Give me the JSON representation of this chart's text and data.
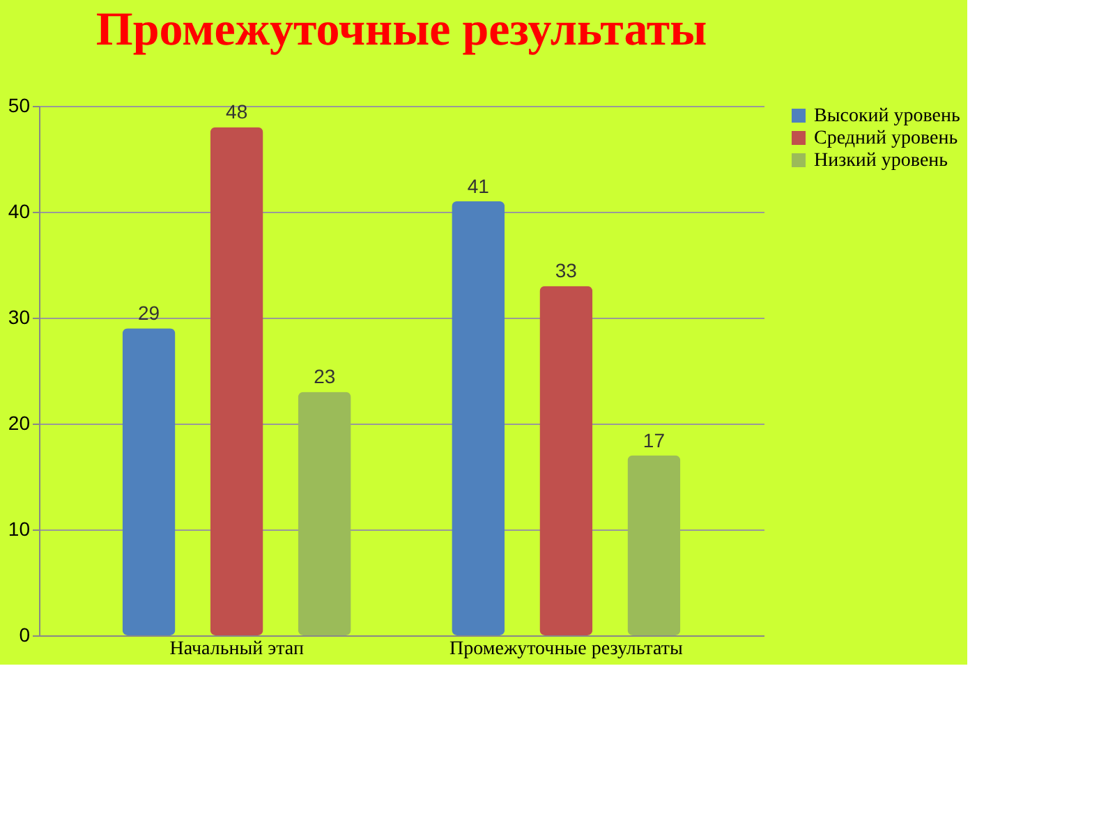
{
  "chart_data": {
    "type": "bar",
    "title": "Промежуточные результаты",
    "categories": [
      "Начальный этап",
      "Промежуточные результаты"
    ],
    "series": [
      {
        "name": "Высокий уровень",
        "color": "#4f81bd",
        "values": [
          29,
          41
        ]
      },
      {
        "name": "Средний уровень",
        "color": "#c0504d",
        "values": [
          48,
          33
        ]
      },
      {
        "name": "Низкий уровень",
        "color": "#9bbb59",
        "values": [
          23,
          17
        ]
      }
    ],
    "ylim": [
      0,
      50
    ],
    "yticks": [
      0,
      10,
      20,
      30,
      40,
      50
    ],
    "grid": "y",
    "legend": "right",
    "data_labels": true
  }
}
